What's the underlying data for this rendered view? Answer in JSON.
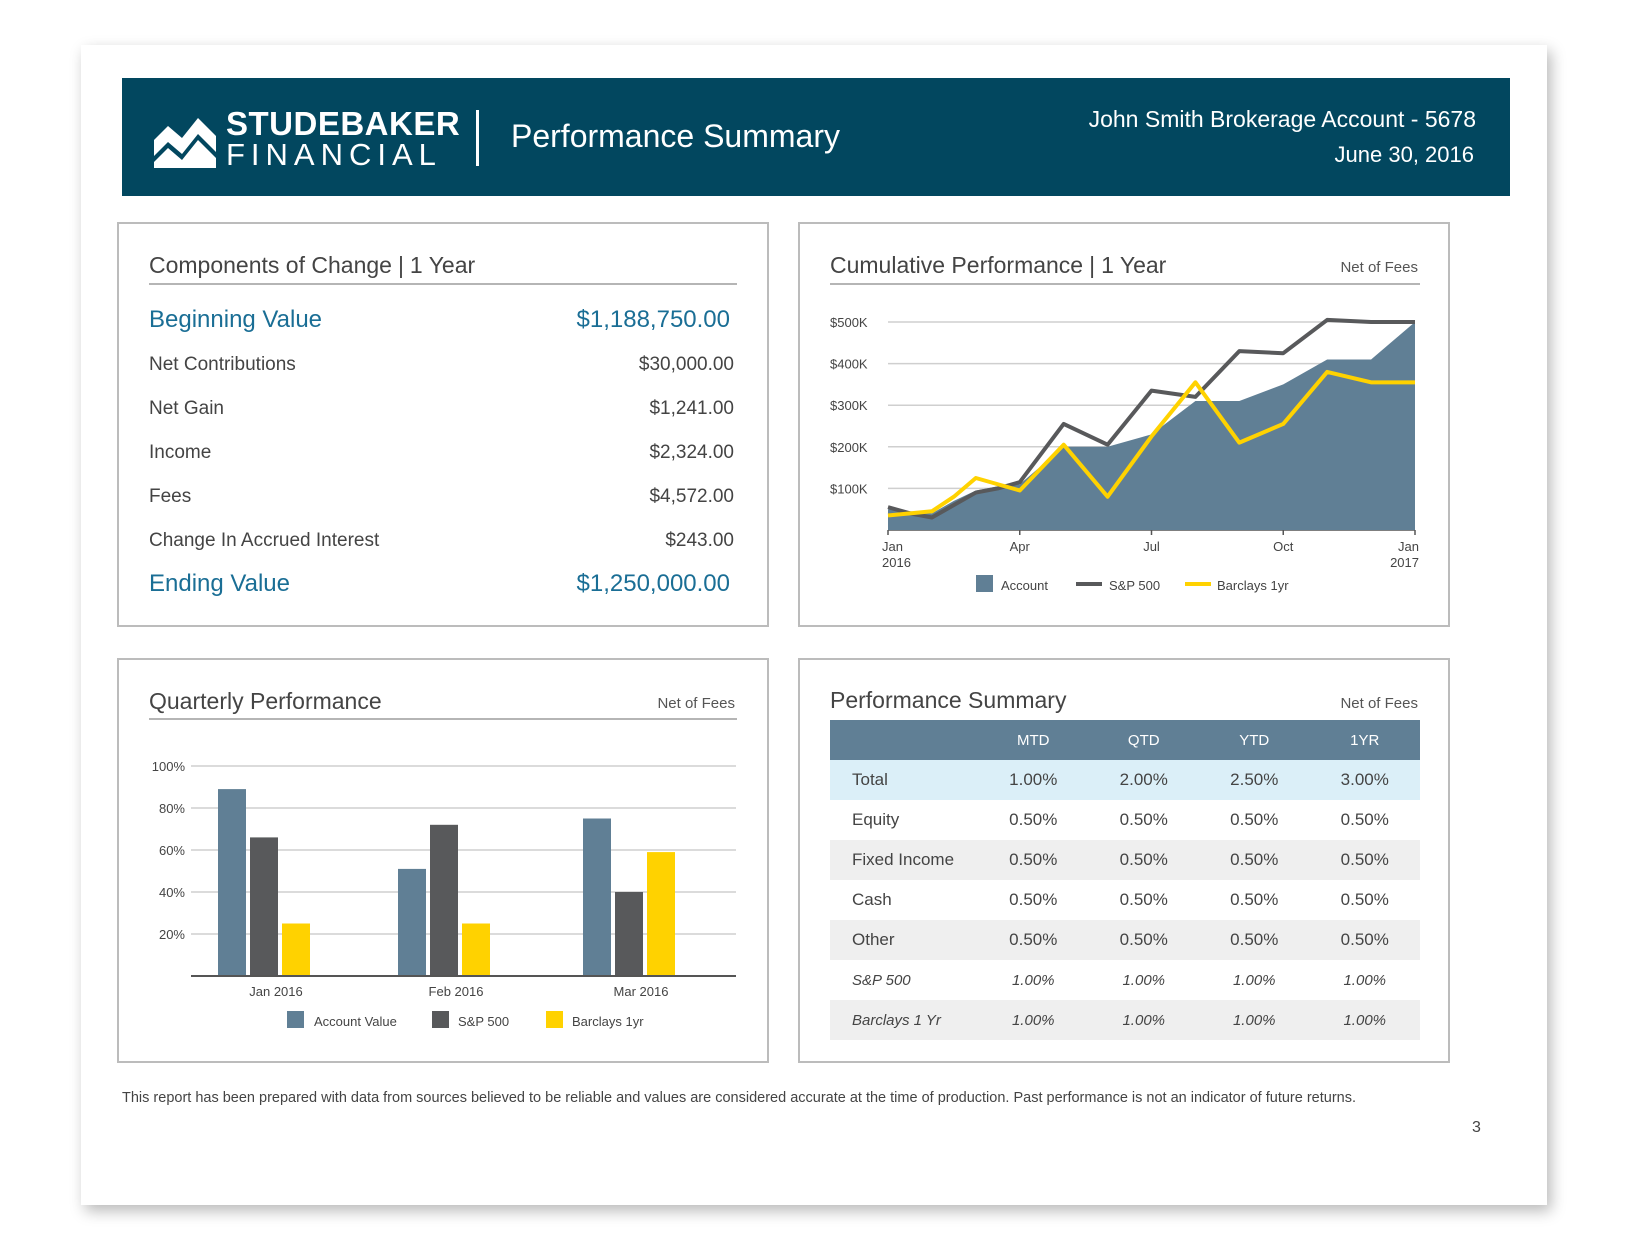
{
  "header": {
    "logo_line1": "STUDEBAKER",
    "logo_line2": "FINANCIAL",
    "title": "Performance Summary",
    "account": "John Smith Brokerage Account - 5678",
    "date": "June 30, 2016"
  },
  "components": {
    "title": "Components of Change",
    "period": "1 Year",
    "rows": [
      {
        "label": "Beginning Value",
        "value": "$1,188,750.00"
      },
      {
        "label": "Net Contributions",
        "value": "$30,000.00"
      },
      {
        "label": "Net Gain",
        "value": "$1,241.00"
      },
      {
        "label": "Income",
        "value": "$2,324.00"
      },
      {
        "label": "Fees",
        "value": "$4,572.00"
      },
      {
        "label": "Change In Accrued Interest",
        "value": "$243.00"
      },
      {
        "label": "Ending Value",
        "value": "$1,250,000.00"
      }
    ]
  },
  "cumulative": {
    "title": "Cumulative Performance",
    "period": "1 Year",
    "note": "Net of Fees"
  },
  "quarterly": {
    "title": "Quarterly Performance",
    "note": "Net of Fees"
  },
  "perf_summary": {
    "title": "Performance Summary",
    "note": "Net of Fees",
    "columns": [
      "MTD",
      "QTD",
      "YTD",
      "1YR"
    ],
    "rows": [
      {
        "label": "Total",
        "values": [
          "1.00%",
          "2.00%",
          "2.50%",
          "3.00%"
        ]
      },
      {
        "label": "Equity",
        "values": [
          "0.50%",
          "0.50%",
          "0.50%",
          "0.50%"
        ]
      },
      {
        "label": "Fixed Income",
        "values": [
          "0.50%",
          "0.50%",
          "0.50%",
          "0.50%"
        ]
      },
      {
        "label": "Cash",
        "values": [
          "0.50%",
          "0.50%",
          "0.50%",
          "0.50%"
        ]
      },
      {
        "label": "Other",
        "values": [
          "0.50%",
          "0.50%",
          "0.50%",
          "0.50%"
        ]
      },
      {
        "label": "S&P 500",
        "values": [
          "1.00%",
          "1.00%",
          "1.00%",
          "1.00%"
        ]
      },
      {
        "label": "Barclays 1 Yr",
        "values": [
          "1.00%",
          "1.00%",
          "1.00%",
          "1.00%"
        ]
      }
    ]
  },
  "footer": {
    "disclaimer": "This report has been prepared with data from sources believed to be reliable and values are considered accurate at the time of production. Past performance is not an indicator of future returns.",
    "page_number": "3"
  },
  "colors": {
    "brand": "#02475f",
    "account": "#607f95",
    "sp500": "#58595b",
    "barclays": "#ffd200",
    "accent_text": "#1a6e95"
  },
  "chart_data": [
    {
      "type": "area",
      "title": "Cumulative Performance | 1 Year",
      "y_ticks": [
        "$100K",
        "$200K",
        "$300K",
        "$400K",
        "$500K"
      ],
      "ylim": [
        0,
        500
      ],
      "x_ticks": [
        {
          "x": 0,
          "label1": "Jan",
          "label2": "2016"
        },
        {
          "x": 3,
          "label1": "Apr",
          "label2": ""
        },
        {
          "x": 6,
          "label1": "Jul",
          "label2": ""
        },
        {
          "x": 9,
          "label1": "Oct",
          "label2": ""
        },
        {
          "x": 12,
          "label1": "Jan",
          "label2": "2017"
        }
      ],
      "x": [
        0,
        0.5,
        1,
        1.5,
        2,
        2.5,
        3,
        4,
        5,
        6,
        7,
        8,
        9,
        10,
        11,
        12
      ],
      "series": [
        {
          "name": "Account",
          "kind": "area",
          "values": [
            50,
            45,
            40,
            70,
            95,
            105,
            110,
            200,
            200,
            230,
            310,
            310,
            350,
            410,
            410,
            500
          ]
        },
        {
          "name": "S&P 500",
          "kind": "line",
          "values": [
            55,
            40,
            30,
            60,
            90,
            100,
            115,
            255,
            205,
            335,
            320,
            430,
            425,
            505,
            500,
            500
          ]
        },
        {
          "name": "Barclays 1yr",
          "kind": "line",
          "values": [
            35,
            40,
            45,
            80,
            125,
            110,
            95,
            205,
            80,
            225,
            355,
            210,
            255,
            380,
            355,
            355
          ]
        }
      ],
      "legend": [
        "Account",
        "S&P 500",
        "Barclays 1yr"
      ]
    },
    {
      "type": "bar",
      "title": "Quarterly Performance",
      "categories": [
        "Jan 2016",
        "Feb 2016",
        "Mar 2016"
      ],
      "y_ticks": [
        "20%",
        "40%",
        "60%",
        "80%",
        "100%"
      ],
      "ylim": [
        0,
        100
      ],
      "series": [
        {
          "name": "Account Value",
          "values": [
            89,
            51,
            75
          ]
        },
        {
          "name": "S&P 500",
          "values": [
            66,
            72,
            40
          ]
        },
        {
          "name": "Barclays 1yr",
          "values": [
            25,
            25,
            59
          ]
        }
      ],
      "legend": [
        "Account Value",
        "S&P 500",
        "Barclays 1yr"
      ]
    }
  ]
}
